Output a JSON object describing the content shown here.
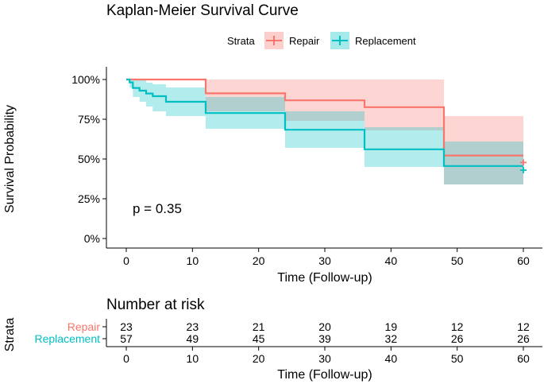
{
  "chart_data": {
    "type": "line",
    "title": "Kaplan-Meier Survival Curve",
    "xlabel": "Time (Follow-up)",
    "ylabel": "Survival Probability",
    "xlim": [
      0,
      60
    ],
    "ylim": [
      0,
      1
    ],
    "x_ticks": [
      "0",
      "10",
      "20",
      "30",
      "40",
      "50",
      "60"
    ],
    "y_ticks": [
      "0%",
      "25%",
      "50%",
      "75%",
      "100%"
    ],
    "legend_title": "Strata",
    "legend_position": "top",
    "annotation": "p = 0.35",
    "series": [
      {
        "name": "Repair",
        "color": "#F8766D",
        "band_color": "#F8766D",
        "steps": [
          [
            0,
            1.0
          ],
          [
            12,
            0.913
          ],
          [
            24,
            0.869
          ],
          [
            36,
            0.826
          ],
          [
            48,
            0.522
          ]
        ],
        "end": 60,
        "ci_steps": [
          [
            0,
            1.0,
            1.0
          ],
          [
            12,
            0.8,
            1.0
          ],
          [
            24,
            0.74,
            1.0
          ],
          [
            36,
            0.68,
            1.0
          ],
          [
            48,
            0.34,
            0.77
          ]
        ],
        "censor": [
          [
            60,
            0.478
          ]
        ]
      },
      {
        "name": "Replacement",
        "color": "#00BFC4",
        "band_color": "#00BFC4",
        "steps": [
          [
            0,
            1.0
          ],
          [
            0.5,
            0.982
          ],
          [
            1,
            0.947
          ],
          [
            2,
            0.93
          ],
          [
            3,
            0.912
          ],
          [
            4,
            0.895
          ],
          [
            6,
            0.86
          ],
          [
            12,
            0.789
          ],
          [
            24,
            0.684
          ],
          [
            36,
            0.561
          ],
          [
            48,
            0.456
          ]
        ],
        "end": 60,
        "ci_steps": [
          [
            0,
            1.0,
            1.0
          ],
          [
            0.5,
            0.95,
            1.0
          ],
          [
            1,
            0.89,
            1.0
          ],
          [
            2,
            0.86,
            1.0
          ],
          [
            3,
            0.83,
            0.98
          ],
          [
            4,
            0.8,
            0.97
          ],
          [
            6,
            0.77,
            0.95
          ],
          [
            12,
            0.69,
            0.89
          ],
          [
            24,
            0.57,
            0.8
          ],
          [
            36,
            0.45,
            0.7
          ],
          [
            48,
            0.34,
            0.61
          ]
        ],
        "censor": [
          [
            60,
            0.43
          ]
        ]
      }
    ],
    "risk_table": {
      "title": "Number at risk",
      "y_title": "Strata",
      "xlabel": "Time (Follow-up)",
      "times": [
        "0",
        "10",
        "20",
        "30",
        "40",
        "50",
        "60"
      ],
      "rows": [
        {
          "name": "Repair",
          "color": "#F8766D",
          "values": [
            "23",
            "23",
            "21",
            "20",
            "19",
            "12",
            "12"
          ]
        },
        {
          "name": "Replacement",
          "color": "#00BFC4",
          "values": [
            "57",
            "49",
            "45",
            "39",
            "32",
            "26",
            "26"
          ]
        }
      ]
    }
  }
}
